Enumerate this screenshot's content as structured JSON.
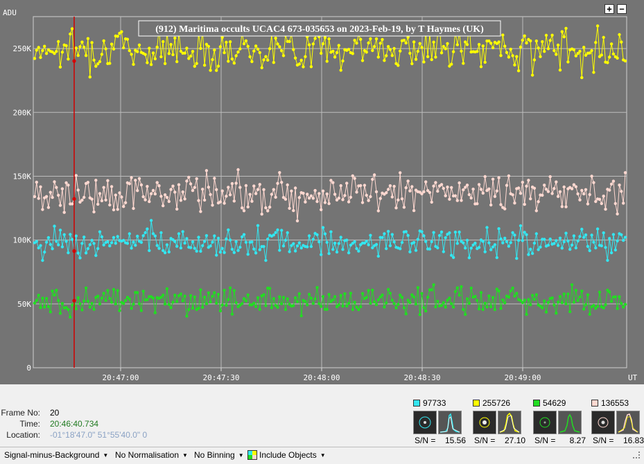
{
  "chart_data": {
    "type": "line",
    "title": "(912) Maritima occults UCAC4 673-035653 on 2023-Feb-19,  by T Haymes (UK)",
    "ylabel": "ADU",
    "xlabel": "UT",
    "ylim": [
      0,
      275000
    ],
    "y_ticks": [
      {
        "value": 0,
        "label": "0"
      },
      {
        "value": 50000,
        "label": "50K"
      },
      {
        "value": 100000,
        "label": "100K"
      },
      {
        "value": 150000,
        "label": "150K"
      },
      {
        "value": 200000,
        "label": "200K"
      },
      {
        "value": 250000,
        "label": "250K"
      }
    ],
    "x_ticks": [
      "20:47:00",
      "20:47:30",
      "20:48:00",
      "20:48:30",
      "20:49:00"
    ],
    "grid": true,
    "series": [
      {
        "color": "#ffff00",
        "mean": 250000,
        "noise": 11000
      },
      {
        "color": "#ffd8d0",
        "mean": 137000,
        "noise": 11000
      },
      {
        "color": "#33e6f0",
        "mean": 98000,
        "noise": 8000
      },
      {
        "color": "#22dd22",
        "mean": 53000,
        "noise": 7500
      }
    ],
    "frames": 300,
    "current_frame_marker": 20
  },
  "zoom": {
    "plus": "+",
    "minus": "−"
  },
  "frame": {
    "frame_label": "Frame No:",
    "frame_value": "20",
    "time_label": "Time:",
    "time_value": "20:46:40.734",
    "location_label": "Location:",
    "location_value": "-01°18'47.0\" 51°55'40.0\" 0"
  },
  "targets": [
    {
      "value": "97733",
      "color": "#33e6f0",
      "sn_label": "S/N =",
      "sn": "15.56"
    },
    {
      "value": "255726",
      "color": "#ffff00",
      "sn_label": "S/N =",
      "sn": "27.10"
    },
    {
      "value": "54629",
      "color": "#22dd22",
      "sn_label": "S/N =",
      "sn": "8.27"
    },
    {
      "value": "136553",
      "color": "#ffd8d0",
      "sn_label": "S/N =",
      "sn": "16.83"
    }
  ],
  "toolbar": {
    "signal": "Signal-minus-Background",
    "normalisation": "No Normalisation",
    "binning": "No Binning",
    "include": "Include Objects"
  }
}
